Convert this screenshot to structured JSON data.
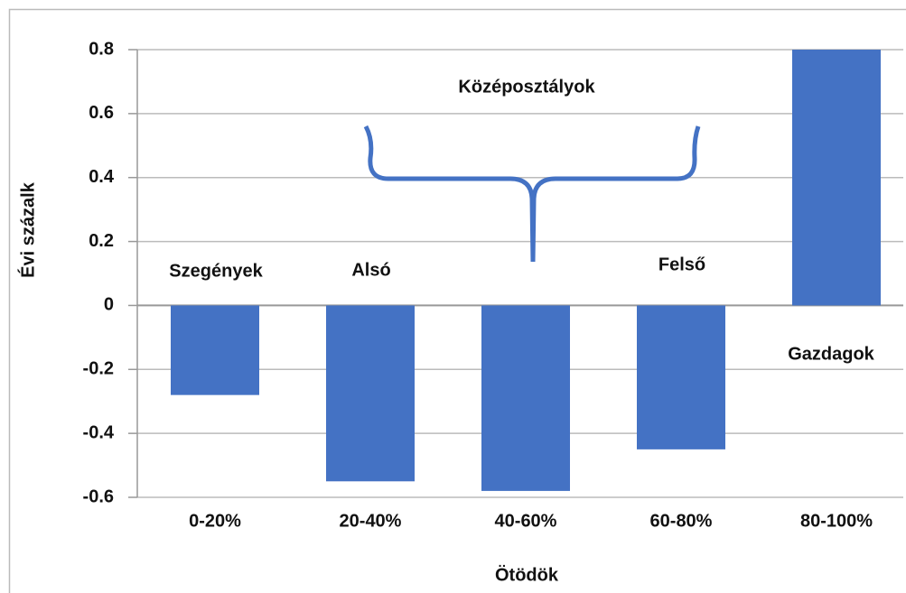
{
  "chart_data": {
    "type": "bar",
    "x_label": "Ötödök",
    "y_label": "Évi százalk",
    "categories": [
      "0-20%",
      "20-40%",
      "40-60%",
      "60-80%",
      "80-100%"
    ],
    "values": [
      -0.28,
      -0.55,
      -0.58,
      -0.45,
      0.8
    ],
    "color": "#4472c4",
    "ylim": [
      -0.6,
      0.8
    ],
    "yticks": [
      -0.6,
      -0.4,
      -0.2,
      0,
      0.2,
      0.4,
      0.6,
      0.8
    ],
    "grid": true,
    "annotations": [
      "Középosztályok",
      "Szegények",
      "Alsó",
      "Felső",
      "Gazdagok"
    ]
  }
}
